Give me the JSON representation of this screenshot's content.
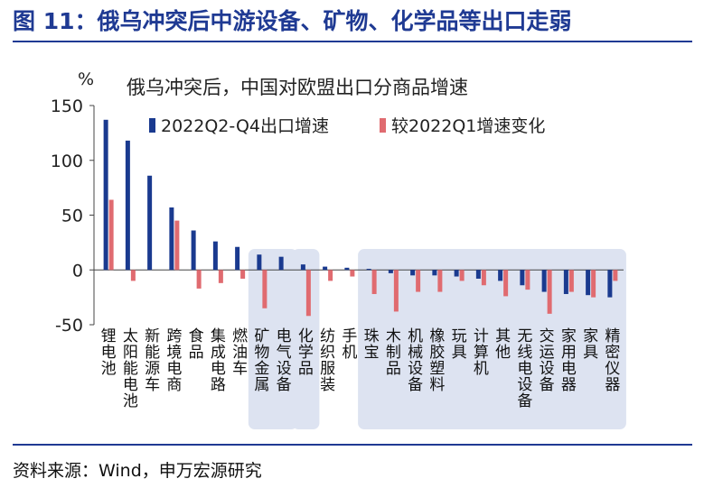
{
  "figure": {
    "title": "图 11：俄乌冲突后中游设备、矿物、化学品等出口走弱",
    "source": "资料来源：Wind，申万宏源研究"
  },
  "colors": {
    "title": "#1f3a93",
    "series1": "#1a3a8f",
    "series2": "#e06b70",
    "highlight": "#dde3f1"
  },
  "chart_data": {
    "type": "bar",
    "title": "俄乌冲突后，中国对欧盟出口分商品增速",
    "ylabel": "%",
    "ylim": [
      -50,
      150
    ],
    "yticks": [
      -50,
      0,
      50,
      100,
      150
    ],
    "grid": false,
    "legend": "top-right",
    "categories": [
      "锂电池",
      "太阳能电池",
      "新能源车",
      "跨境电商",
      "食品",
      "集成电路",
      "燃油车",
      "矿物金属",
      "电气设备",
      "化学品",
      "纺织服装",
      "手机",
      "珠宝",
      "木制品",
      "机械设备",
      "橡胶塑料",
      "玩具",
      "计算机",
      "其他",
      "无线电设备",
      "交运设备",
      "家用电器",
      "家具",
      "精密仪器"
    ],
    "series": [
      {
        "name": "2022Q2-Q4出口增速",
        "values": [
          137,
          118,
          86,
          57,
          36,
          26,
          21,
          14,
          12,
          5,
          3,
          2,
          1,
          -3,
          -5,
          -5,
          -6,
          -8,
          -10,
          -14,
          -20,
          -22,
          -23,
          -25
        ]
      },
      {
        "name": "较2022Q1增速变化",
        "values": [
          64,
          -10,
          0,
          45,
          -17,
          -12,
          -8,
          -35,
          0,
          -42,
          -10,
          -6,
          -22,
          -38,
          -20,
          -20,
          -10,
          -14,
          -24,
          -18,
          -40,
          -20,
          -25,
          -10
        ]
      }
    ],
    "highlight_groups": [
      {
        "from": "矿物金属",
        "to": "电气设备"
      },
      {
        "from": "化学品",
        "to": "化学品"
      },
      {
        "from": "珠宝",
        "to": "精密仪器"
      }
    ]
  }
}
